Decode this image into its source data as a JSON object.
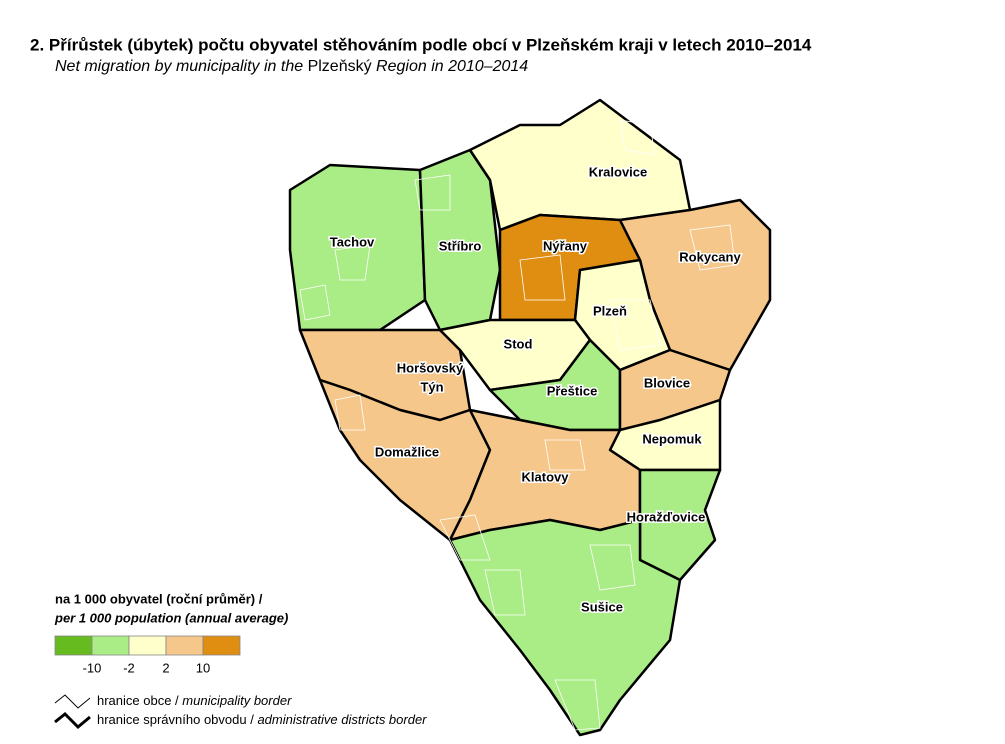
{
  "header": {
    "title": "2. Přírůstek (úbytek) počtu obyvatel stěhováním podle obcí v Plzeňském kraji v letech 2010–2014",
    "subtitle_parts": [
      "Net migration by municipality in the ",
      "Plzeňský",
      " Region in 2010–2014"
    ]
  },
  "districts": [
    "Tachov",
    "Stříbro",
    "Kralovice",
    "Nýřany",
    "Rokycany",
    "Plzeň",
    "Horšovský",
    "Týn",
    "Stod",
    "Přeštice",
    "Blovice",
    "Domažlice",
    "Nepomuk",
    "Klatovy",
    "Horažďovice",
    "Sušice"
  ],
  "legend": {
    "title": "na 1 000 obyvatel (roční průměr) /",
    "title_en": "per 1 000 population (annual average)",
    "colors": [
      "#66bb1f",
      "#aaec86",
      "#ffffcc",
      "#f5c78a",
      "#e08e12"
    ],
    "breaks": [
      -10,
      -2,
      2,
      10
    ]
  },
  "borders": [
    {
      "label": "hranice obce /",
      "label_en": "municipality border"
    },
    {
      "label": "hranice správního obvodu /",
      "label_en": "administrative districts border"
    }
  ]
}
